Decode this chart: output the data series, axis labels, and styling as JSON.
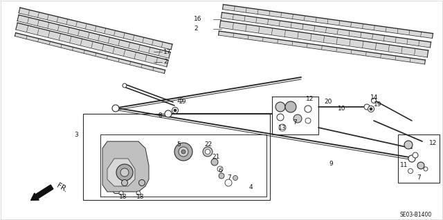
{
  "bg_color": "#ffffff",
  "fig_width": 6.4,
  "fig_height": 3.19,
  "dpi": 100,
  "diagram_code": "SE03-B1400",
  "line_color": "#2a2a2a",
  "label_fontsize": 6.5,
  "label_color": "#111111"
}
